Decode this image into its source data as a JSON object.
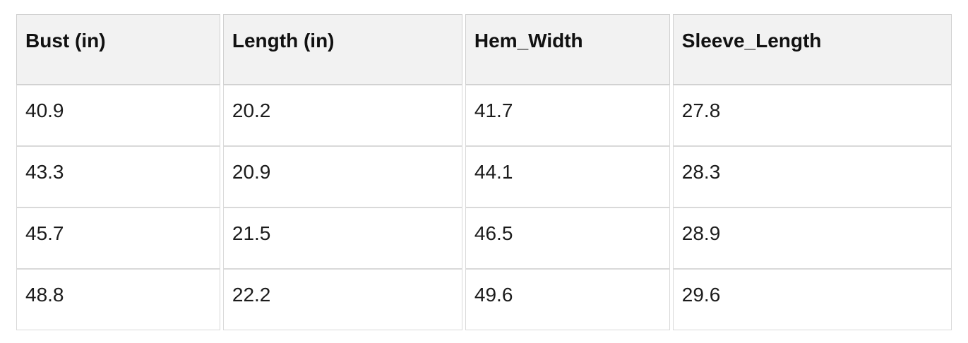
{
  "chart_data": {
    "type": "table",
    "columns": [
      "Bust (in)",
      "Length (in)",
      "Hem_Width",
      "Sleeve_Length"
    ],
    "rows": [
      [
        "40.9",
        "20.2",
        "41.7",
        "27.8"
      ],
      [
        "43.3",
        "20.9",
        "44.1",
        "28.3"
      ],
      [
        "45.7",
        "21.5",
        "46.5",
        "28.9"
      ],
      [
        "48.8",
        "22.2",
        "49.6",
        "29.6"
      ]
    ]
  },
  "colors": {
    "header_bg": "#f2f2f2",
    "header_border": "#d0d0d0",
    "cell_border": "#d9d9d9",
    "header_text": "#111111",
    "cell_text": "#1c1c1c",
    "page_bg": "#ffffff"
  }
}
